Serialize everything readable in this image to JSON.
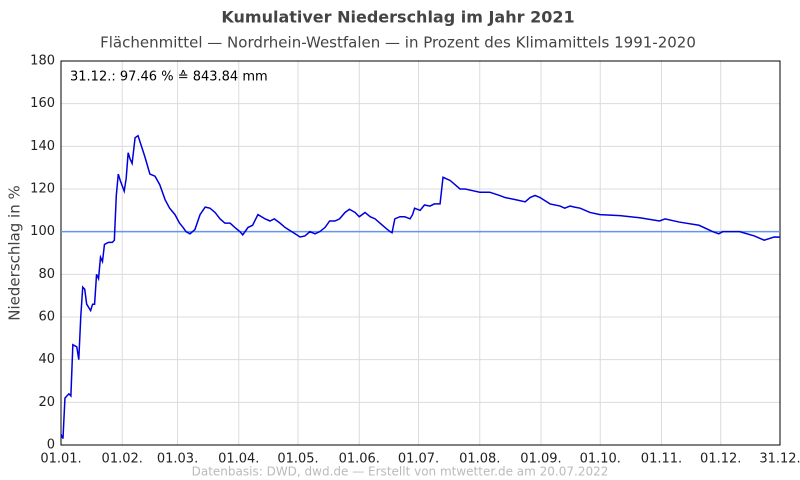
{
  "chart_data": {
    "type": "line",
    "title": "Kumulativer Niederschlag im Jahr 2021",
    "subtitle": "Flächenmittel — Nordrhein-Westfalen — in Prozent des Klimamittels 1991-2020",
    "ylabel": "Niederschlag in %",
    "annotation": "31.12.:  97.46 % ≙ 843.84 mm",
    "footer": "Datenbasis: DWD, dwd.de — Erstellt von mtwetter.de am 20.07.2022",
    "xlim": [
      1,
      365
    ],
    "ylim": [
      0,
      180
    ],
    "xticks": [
      {
        "value": 1,
        "label": "01.01."
      },
      {
        "value": 32,
        "label": "01.02."
      },
      {
        "value": 60,
        "label": "01.03."
      },
      {
        "value": 91,
        "label": "01.04."
      },
      {
        "value": 121,
        "label": "01.05."
      },
      {
        "value": 152,
        "label": "01.06."
      },
      {
        "value": 182,
        "label": "01.07."
      },
      {
        "value": 213,
        "label": "01.08."
      },
      {
        "value": 244,
        "label": "01.09."
      },
      {
        "value": 274,
        "label": "01.10."
      },
      {
        "value": 305,
        "label": "01.11."
      },
      {
        "value": 335,
        "label": "01.12."
      },
      {
        "value": 365,
        "label": "31.12."
      }
    ],
    "yticks": [
      0,
      20,
      40,
      60,
      80,
      100,
      120,
      140,
      160,
      180
    ],
    "grid": true,
    "reference_line": {
      "value": 100,
      "color": "#6495ed"
    },
    "series": [
      {
        "color": "#0000dd",
        "x": [
          1,
          2,
          3,
          5,
          6,
          7,
          9,
          10,
          11,
          12,
          13,
          14,
          16,
          17,
          18,
          19,
          20,
          21,
          22,
          23,
          25,
          27,
          28,
          29,
          30,
          31,
          33,
          34,
          35,
          36,
          37,
          38.5,
          40,
          43.5,
          46,
          48.6,
          51,
          53.7,
          56,
          58.7,
          61,
          62.8,
          64.3,
          66.3,
          68.8,
          71.4,
          74,
          76.4,
          79,
          81.5,
          84,
          86.6,
          89,
          91.6,
          93,
          95.7,
          98,
          100.7,
          104.3,
          106.8,
          109,
          111.9,
          114.4,
          117,
          119.5,
          122,
          124.5,
          127,
          129.6,
          132,
          134.7,
          137,
          139.7,
          142,
          144.8,
          147,
          149.9,
          152,
          154.9,
          157.5,
          160,
          162.5,
          165,
          167.6,
          168.6,
          170,
          172.6,
          175,
          177.7,
          179,
          180,
          182.8,
          185,
          187.8,
          190,
          192.9,
          194.4,
          198,
          200.5,
          203,
          205.6,
          208,
          213,
          218,
          223,
          225.8,
          231,
          236,
          238.5,
          241,
          243.5,
          248.6,
          253.7,
          256,
          258.7,
          261,
          263.8,
          268.8,
          273.9,
          284,
          294,
          304,
          306.8,
          314,
          324,
          331,
          334,
          336,
          344.5,
          352,
          357,
          362,
          365
        ],
        "values": [
          5,
          3,
          22,
          24,
          23,
          47,
          46,
          40,
          60,
          74,
          73,
          66,
          63,
          66,
          66,
          80,
          78,
          88,
          86,
          94,
          95,
          95,
          96,
          117,
          127,
          124,
          119,
          125,
          137,
          134,
          132,
          144,
          145,
          135,
          127,
          126,
          122,
          115,
          111,
          108,
          104,
          102,
          100,
          99,
          101,
          108,
          111.5,
          111,
          109,
          106,
          104,
          104,
          102,
          100,
          98.5,
          102,
          103,
          108,
          106,
          105,
          106,
          104,
          102,
          100.5,
          99,
          97.5,
          98,
          100,
          99,
          100,
          102,
          105,
          105,
          106,
          109,
          110.5,
          109,
          107,
          109,
          107,
          106,
          104,
          102,
          100,
          99.5,
          106,
          107,
          107,
          106,
          108,
          111,
          110,
          112.5,
          112,
          113,
          113,
          125.5,
          124,
          122,
          120,
          120,
          119.5,
          118.5,
          118.5,
          117,
          116,
          115,
          114,
          116,
          117,
          116,
          113,
          112,
          111,
          112,
          111.5,
          111,
          109,
          108,
          107.5,
          106.5,
          105,
          106,
          104.5,
          103,
          100,
          99,
          100,
          100,
          98,
          96,
          97.5,
          97.46
        ]
      }
    ]
  }
}
